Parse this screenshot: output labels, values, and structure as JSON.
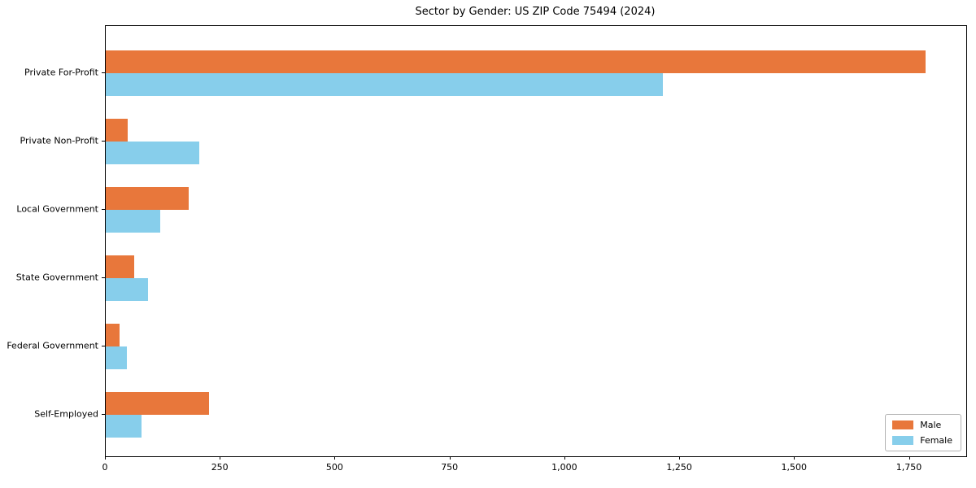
{
  "title": "Sector by Gender: US ZIP Code 75494 (2024)",
  "chart_data": {
    "type": "bar",
    "orientation": "horizontal",
    "title": "Sector by Gender: US ZIP Code 75494 (2024)",
    "categories": [
      "Private For-Profit",
      "Private Non-Profit",
      "Local Government",
      "State Government",
      "Federal Government",
      "Self-Employed"
    ],
    "series": [
      {
        "name": "Male",
        "color": "#e8773b",
        "values": [
          1784,
          48,
          181,
          62,
          30,
          225
        ]
      },
      {
        "name": "Female",
        "color": "#87ceeb",
        "values": [
          1213,
          203,
          119,
          92,
          46,
          78
        ]
      }
    ],
    "xlim": [
      0,
      1873
    ],
    "xticks": [
      0,
      250,
      500,
      750,
      1000,
      1250,
      1500,
      1750
    ],
    "xtick_labels": [
      "0",
      "250",
      "500",
      "750",
      "1,000",
      "1,250",
      "1,500",
      "1,750"
    ],
    "xlabel": "",
    "ylabel": "",
    "grid": false,
    "legend_position": "lower right"
  }
}
